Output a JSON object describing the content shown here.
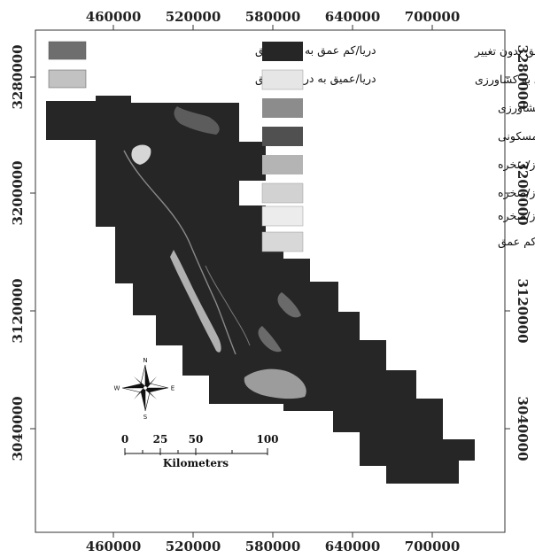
{
  "map": {
    "x_ticks": [
      "460000",
      "520000",
      "580000",
      "640000",
      "700000"
    ],
    "y_ticks": [
      "3280000",
      "3200000",
      "3120000",
      "3040000"
    ]
  },
  "legend": {
    "left_column": [
      {
        "label": "دریا/کم عمق به دریا/عمیق",
        "color": "#6e6e6e"
      },
      {
        "label": "دریا/عمیق به دریا/کم عمق",
        "color": "#c2c2c2"
      }
    ],
    "right_column": [
      {
        "label": "مناطق بدون تغییر",
        "color": "#262626"
      },
      {
        "label": "مسکونی به کشاورزی",
        "color": "#e6e6e6"
      },
      {
        "label": "اراضی باز/صخره به کشاورزی",
        "color": "#8c8c8c"
      },
      {
        "label": "اراضی باز/صخره به مسکونی",
        "color": "#505050"
      },
      {
        "label": "کشاورزی به اراضی باز/صخره",
        "color": "#b4b4b4"
      },
      {
        "label": "مسکونی به اراضی باز/صخره",
        "color": "#d2d2d2"
      },
      {
        "label": "دریا/کم عمق به اراضی باز/صخره",
        "color": "#ececec"
      },
      {
        "label": "اراضی باز/صخره به دریا/کم عمق",
        "color": "#d8d8d8"
      }
    ]
  },
  "north_arrow": {
    "n": "N",
    "s": "S",
    "e": "E",
    "w": "W"
  },
  "scale_bar": {
    "ticks": [
      "0",
      "25",
      "50",
      "100"
    ],
    "unit": "Kilometers"
  }
}
